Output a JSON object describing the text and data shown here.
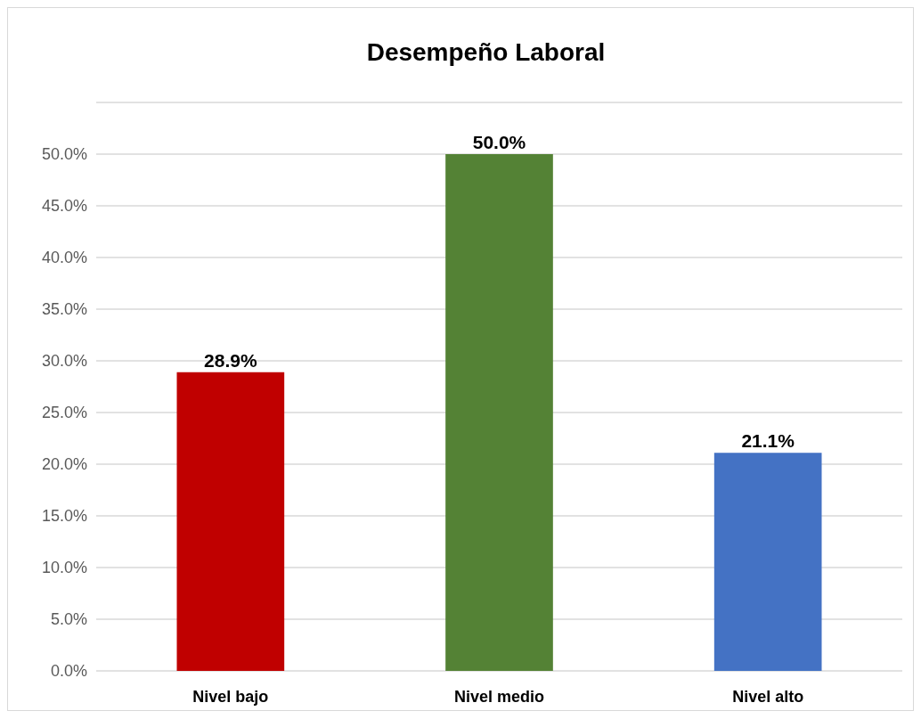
{
  "chart_data": {
    "type": "bar",
    "title": "Desempeño Laboral",
    "categories": [
      "Nivel bajo",
      "Nivel medio",
      "Nivel alto"
    ],
    "values": [
      28.9,
      50.0,
      21.1
    ],
    "colors": [
      "#c00000",
      "#548235",
      "#4472c4"
    ],
    "value_labels": [
      "28.9%",
      "50.0%",
      "21.1%"
    ],
    "ylim": [
      0,
      55
    ],
    "yticks": [
      {
        "value": 0,
        "label": "0.0%"
      },
      {
        "value": 5,
        "label": "5.0%"
      },
      {
        "value": 10,
        "label": "10.0%"
      },
      {
        "value": 15,
        "label": "15.0%"
      },
      {
        "value": 20,
        "label": "20.0%"
      },
      {
        "value": 25,
        "label": "25.0%"
      },
      {
        "value": 30,
        "label": "30.0%"
      },
      {
        "value": 35,
        "label": "35.0%"
      },
      {
        "value": 40,
        "label": "40.0%"
      },
      {
        "value": 45,
        "label": "45.0%"
      },
      {
        "value": 50,
        "label": "50.0%"
      },
      {
        "value": 55,
        "label": null
      }
    ],
    "grid": "y"
  }
}
